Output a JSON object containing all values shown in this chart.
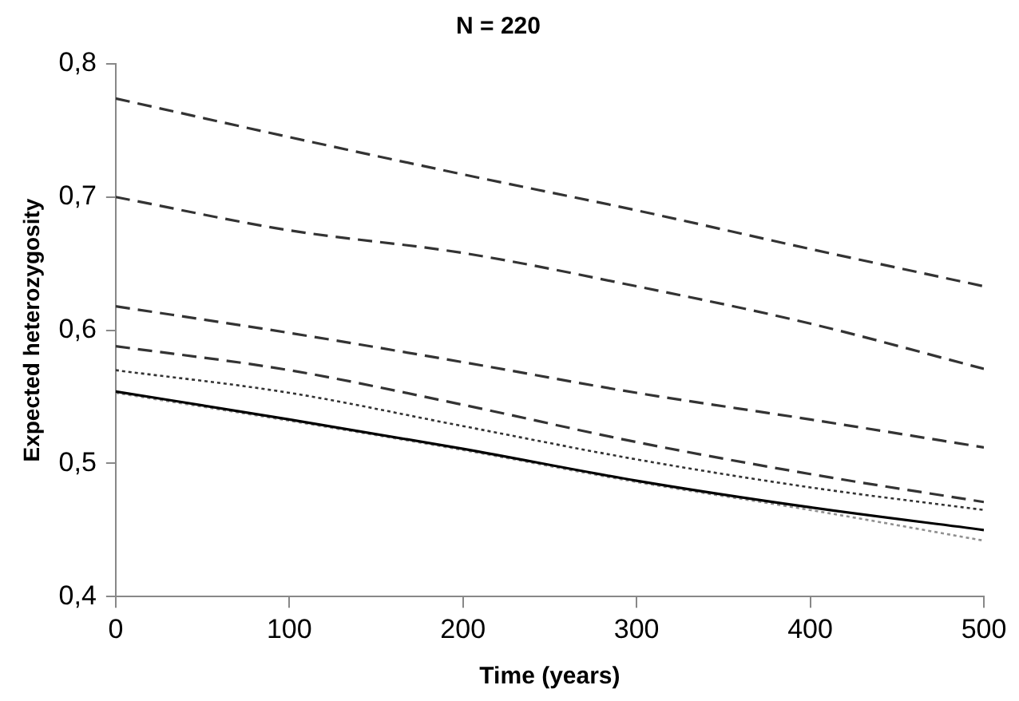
{
  "chart_data": {
    "type": "line",
    "title": "N = 220",
    "xlabel": "Time (years)",
    "ylabel": "Expected heterozygosity",
    "x": [
      0,
      100,
      200,
      300,
      400,
      500
    ],
    "xlim": [
      0,
      500
    ],
    "xticks": [
      0,
      100,
      200,
      300,
      400,
      500
    ],
    "ylim": [
      0.4,
      0.8
    ],
    "yticks": [
      {
        "value": 0.4,
        "label": "0,4"
      },
      {
        "value": 0.5,
        "label": "0,5"
      },
      {
        "value": 0.6,
        "label": "0,6"
      },
      {
        "value": 0.7,
        "label": "0,7"
      },
      {
        "value": 0.8,
        "label": "0,8"
      }
    ],
    "grid": false,
    "legend": false,
    "marker": "none",
    "series": [
      {
        "color": "#333333",
        "line_style": "dashed",
        "values": [
          0.774,
          0.745,
          0.717,
          0.69,
          0.661,
          0.633
        ]
      },
      {
        "color": "#333333",
        "line_style": "dashed",
        "values": [
          0.7,
          0.675,
          0.658,
          0.633,
          0.605,
          0.571
        ]
      },
      {
        "color": "#333333",
        "line_style": "dashed",
        "values": [
          0.618,
          0.598,
          0.576,
          0.553,
          0.533,
          0.512
        ]
      },
      {
        "color": "#333333",
        "line_style": "dashed",
        "values": [
          0.588,
          0.57,
          0.544,
          0.516,
          0.492,
          0.471
        ]
      },
      {
        "color": "#333333",
        "line_style": "dotted",
        "values": [
          0.57,
          0.553,
          0.528,
          0.503,
          0.482,
          0.465
        ]
      },
      {
        "color": "#000000",
        "line_style": "solid",
        "values": [
          0.554,
          0.533,
          0.511,
          0.487,
          0.467,
          0.45
        ]
      },
      {
        "color": "#909090",
        "line_style": "dotted",
        "values": [
          0.553,
          0.532,
          0.51,
          0.486,
          0.465,
          0.442
        ]
      }
    ]
  }
}
